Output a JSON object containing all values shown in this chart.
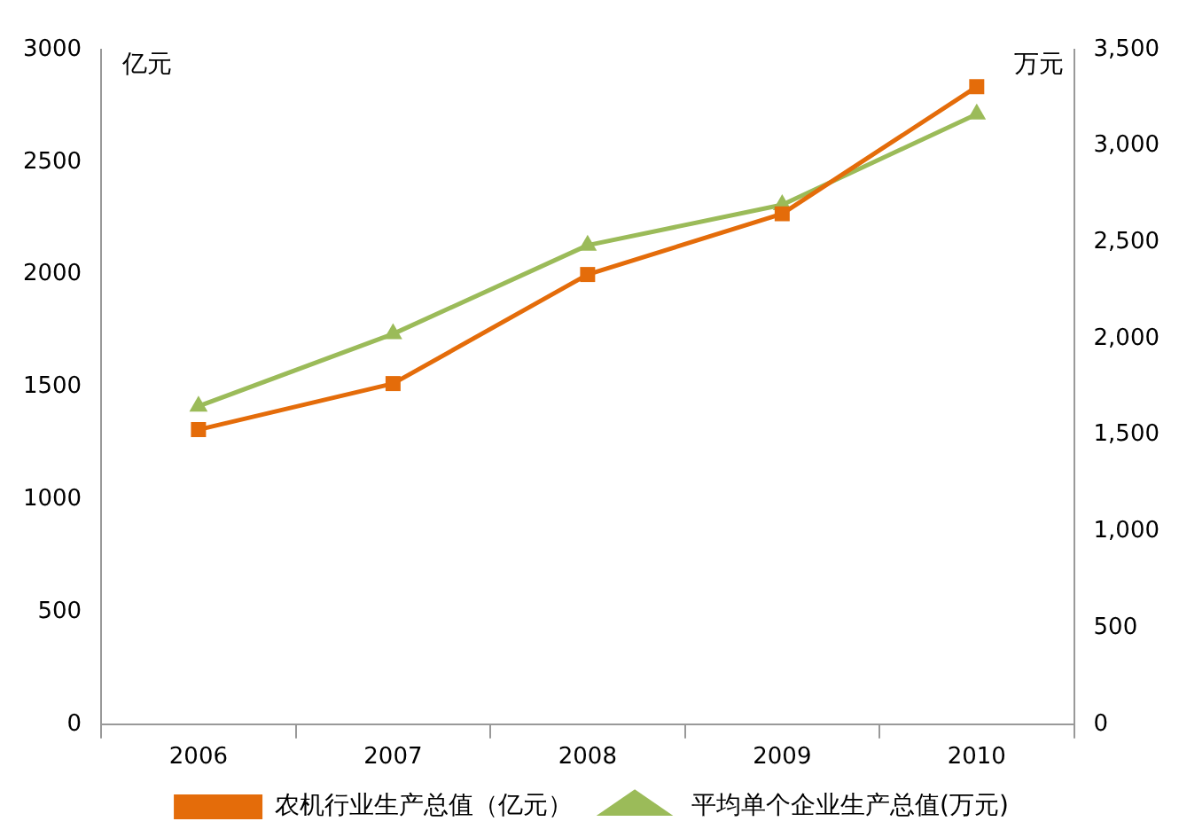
{
  "chart_data": {
    "type": "line",
    "ylabel": "亿元",
    "y2label": "万元",
    "categories": [
      "2006",
      "2007",
      "2008",
      "2009",
      "2010"
    ],
    "series": [
      {
        "name": "农机行业生产总值（亿元）",
        "color": "#e46c0a",
        "values": [
          1310,
          1515,
          2000,
          2270,
          2835
        ],
        "marker": "square"
      },
      {
        "name": "平均单个企业生产总值(万元)",
        "color": "#9bbb59",
        "values": [
          1650,
          2025,
          2485,
          2695,
          3165
        ],
        "marker": "triangle",
        "axis": "y2"
      }
    ],
    "ylim": [
      0,
      3000
    ],
    "yticks": [
      0,
      500,
      1000,
      1500,
      2000,
      2500,
      3000
    ],
    "y2lim": [
      0,
      3500
    ],
    "y2ticks": [
      0,
      {
        "value": 500,
        "label": "500"
      },
      {
        "value": 1000,
        "label": "1,000"
      },
      {
        "value": 1500,
        "label": "1,500"
      },
      {
        "value": 2000,
        "label": "2,000"
      },
      {
        "value": 2500,
        "label": "2,500"
      },
      {
        "value": 3000,
        "label": "3,000"
      },
      {
        "value": 3500,
        "label": "3,500"
      }
    ],
    "grid": false,
    "legend": "bottom"
  }
}
